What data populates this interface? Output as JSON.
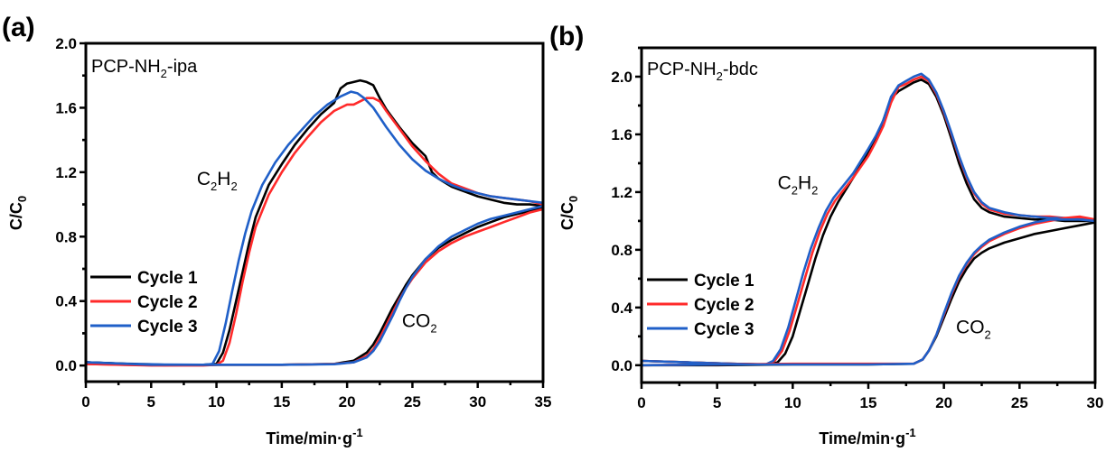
{
  "figure": {
    "colors": {
      "cycle1": "#000000",
      "cycle2": "#ff2a2a",
      "cycle3": "#1f5fc8",
      "axis": "#000000"
    }
  },
  "chart_data": [
    {
      "type": "line",
      "panel_label": "(a)",
      "sample": {
        "prefix": "PCP-NH",
        "sub": "2",
        "suffix": "-ipa"
      },
      "xlabel": {
        "main": "Time/min·g",
        "sup": "-1"
      },
      "ylabel": {
        "main": "C/C",
        "sub": "0"
      },
      "xlim": [
        0,
        35
      ],
      "ylim": [
        -0.1,
        2.0
      ],
      "xticks": [
        0,
        5,
        10,
        15,
        20,
        25,
        30,
        35
      ],
      "xtick_labels": [
        "0",
        "5",
        "10",
        "15",
        "20",
        "25",
        "30",
        "35"
      ],
      "yticks": [
        0.0,
        0.4,
        0.8,
        1.2,
        1.6,
        2.0
      ],
      "ytick_labels": [
        "0.0",
        "0.4",
        "0.8",
        "1.2",
        "1.6",
        "2.0"
      ],
      "grid": false,
      "legend": {
        "position": "lower-left",
        "entries": [
          "Cycle 1",
          "Cycle 2",
          "Cycle 3"
        ]
      },
      "annotations": [
        {
          "main": "C",
          "sub1": "2",
          "mid": "H",
          "sub2": "2",
          "x": 8.5,
          "y": 1.12
        },
        {
          "main": "CO",
          "sub1": "2",
          "x": 24.2,
          "y": 0.24
        }
      ],
      "series": [
        {
          "name": "Cycle 1",
          "gas": "C2H2",
          "color": "#000000",
          "x": [
            0,
            3,
            6,
            9,
            10,
            10.5,
            11,
            11.5,
            12,
            12.5,
            13,
            14,
            15,
            16,
            17,
            18,
            19,
            19.5,
            20,
            20.5,
            21,
            21.5,
            22,
            22.5,
            23,
            24,
            25,
            26,
            26.5,
            27,
            28,
            29,
            30,
            31,
            32,
            33,
            34,
            35
          ],
          "y": [
            0.02,
            0.01,
            0.005,
            0.005,
            0.01,
            0.08,
            0.22,
            0.4,
            0.58,
            0.76,
            0.92,
            1.12,
            1.25,
            1.37,
            1.47,
            1.56,
            1.63,
            1.72,
            1.75,
            1.76,
            1.77,
            1.76,
            1.74,
            1.66,
            1.59,
            1.48,
            1.38,
            1.3,
            1.2,
            1.16,
            1.11,
            1.08,
            1.05,
            1.03,
            1.01,
            1.0,
            1.0,
            0.99
          ]
        },
        {
          "name": "Cycle 2",
          "gas": "C2H2",
          "color": "#ff2a2a",
          "x": [
            0,
            3,
            6,
            9,
            10,
            10.5,
            11,
            11.5,
            12,
            12.5,
            13,
            14,
            15,
            16,
            17,
            18,
            19,
            20,
            20.5,
            21,
            21.5,
            22,
            22.5,
            23,
            24,
            25,
            26,
            27,
            28,
            29,
            30,
            31,
            32,
            33,
            34,
            35
          ],
          "y": [
            0.01,
            0.005,
            0.0,
            0.0,
            0.005,
            0.03,
            0.14,
            0.32,
            0.52,
            0.7,
            0.86,
            1.06,
            1.2,
            1.32,
            1.42,
            1.51,
            1.58,
            1.62,
            1.62,
            1.64,
            1.66,
            1.66,
            1.64,
            1.58,
            1.47,
            1.36,
            1.27,
            1.19,
            1.13,
            1.1,
            1.07,
            1.05,
            1.04,
            1.03,
            1.02,
            1.0
          ]
        },
        {
          "name": "Cycle 3",
          "gas": "C2H2",
          "color": "#1f5fc8",
          "x": [
            0,
            3,
            6,
            9,
            9.7,
            10.2,
            10.7,
            11.2,
            11.7,
            12.2,
            12.7,
            13.5,
            14.5,
            15.5,
            16.5,
            17.5,
            18.5,
            19.5,
            20.3,
            20.8,
            21.3,
            22,
            23,
            24,
            25,
            26,
            27,
            28,
            29,
            30,
            31,
            32,
            33,
            34,
            35
          ],
          "y": [
            0.02,
            0.012,
            0.006,
            0.005,
            0.01,
            0.09,
            0.26,
            0.46,
            0.65,
            0.82,
            0.96,
            1.12,
            1.26,
            1.37,
            1.46,
            1.55,
            1.62,
            1.67,
            1.7,
            1.69,
            1.66,
            1.6,
            1.48,
            1.37,
            1.28,
            1.21,
            1.16,
            1.12,
            1.09,
            1.07,
            1.05,
            1.04,
            1.03,
            1.02,
            1.01
          ]
        },
        {
          "name": "Cycle 1",
          "gas": "CO2",
          "color": "#000000",
          "x": [
            0,
            5,
            10,
            15,
            19,
            20.5,
            21.5,
            22,
            22.5,
            23,
            23.5,
            24,
            24.5,
            25,
            26,
            27,
            28,
            29,
            30,
            31,
            32,
            33,
            34,
            35
          ],
          "y": [
            0.02,
            0.005,
            0.005,
            0.005,
            0.01,
            0.03,
            0.08,
            0.13,
            0.2,
            0.28,
            0.36,
            0.43,
            0.5,
            0.56,
            0.66,
            0.73,
            0.78,
            0.82,
            0.86,
            0.89,
            0.92,
            0.94,
            0.96,
            0.98
          ]
        },
        {
          "name": "Cycle 2",
          "gas": "CO2",
          "color": "#ff2a2a",
          "x": [
            0,
            5,
            10,
            15,
            19,
            20.5,
            21.5,
            22,
            22.5,
            23,
            23.5,
            24,
            24.5,
            25,
            26,
            27,
            28,
            29,
            30,
            31,
            32,
            33,
            34,
            35
          ],
          "y": [
            0.01,
            0.0,
            0.005,
            0.005,
            0.01,
            0.02,
            0.06,
            0.1,
            0.17,
            0.25,
            0.33,
            0.41,
            0.48,
            0.54,
            0.64,
            0.71,
            0.76,
            0.8,
            0.83,
            0.86,
            0.89,
            0.92,
            0.95,
            0.97
          ]
        },
        {
          "name": "Cycle 3",
          "gas": "CO2",
          "color": "#1f5fc8",
          "x": [
            0,
            5,
            10,
            15,
            19,
            20.5,
            21.5,
            22,
            22.5,
            23,
            23.5,
            24,
            24.5,
            25,
            26,
            27,
            28,
            29,
            30,
            31,
            32,
            33,
            34,
            35
          ],
          "y": [
            0.02,
            0.005,
            0.005,
            0.005,
            0.008,
            0.02,
            0.05,
            0.09,
            0.15,
            0.23,
            0.31,
            0.4,
            0.48,
            0.55,
            0.66,
            0.74,
            0.8,
            0.84,
            0.88,
            0.91,
            0.93,
            0.95,
            0.97,
            0.99
          ]
        }
      ]
    },
    {
      "type": "line",
      "panel_label": "(b)",
      "sample": {
        "prefix": "PCP-NH",
        "sub": "2",
        "suffix": "-bdc"
      },
      "xlabel": {
        "main": "Time/min·g",
        "sup": "-1"
      },
      "ylabel": {
        "main": "C/C",
        "sub": "0"
      },
      "xlim": [
        0,
        30
      ],
      "ylim": [
        -0.12,
        2.2
      ],
      "xticks": [
        0,
        5,
        10,
        15,
        20,
        25,
        30
      ],
      "xtick_labels": [
        "0",
        "5",
        "10",
        "15",
        "20",
        "25",
        "30"
      ],
      "yticks": [
        0.0,
        0.4,
        0.8,
        1.2,
        1.6,
        2.0
      ],
      "ytick_labels": [
        "0.0",
        "0.4",
        "0.8",
        "1.2",
        "1.6",
        "2.0"
      ],
      "grid": false,
      "legend": {
        "position": "lower-left",
        "entries": [
          "Cycle 1",
          "Cycle 2",
          "Cycle 3"
        ]
      },
      "annotations": [
        {
          "main": "C",
          "sub1": "2",
          "mid": "H",
          "sub2": "2",
          "x": 9.0,
          "y": 1.22
        },
        {
          "main": "CO",
          "sub1": "2",
          "x": 20.8,
          "y": 0.22
        }
      ],
      "series": [
        {
          "name": "Cycle 1",
          "gas": "C2H2",
          "color": "#000000",
          "x": [
            0,
            3,
            6,
            8.5,
            9,
            9.5,
            10,
            10.5,
            11,
            11.5,
            12,
            12.5,
            13,
            14,
            15,
            15.5,
            16,
            16.5,
            17,
            17.5,
            18,
            18.5,
            19,
            19.5,
            20,
            20.5,
            21,
            21.5,
            22,
            22.5,
            23,
            24,
            25,
            26,
            27,
            28,
            29,
            30
          ],
          "y": [
            0.03,
            0.02,
            0.01,
            0.005,
            0.02,
            0.08,
            0.2,
            0.38,
            0.56,
            0.74,
            0.9,
            1.03,
            1.13,
            1.3,
            1.47,
            1.56,
            1.7,
            1.85,
            1.9,
            1.93,
            1.96,
            1.98,
            1.95,
            1.86,
            1.73,
            1.57,
            1.4,
            1.26,
            1.15,
            1.09,
            1.06,
            1.03,
            1.02,
            1.01,
            1.01,
            1.0,
            1.0,
            1.0
          ]
        },
        {
          "name": "Cycle 2",
          "gas": "C2H2",
          "color": "#ff2a2a",
          "x": [
            0,
            3,
            6,
            8.3,
            8.8,
            9.3,
            9.8,
            10.3,
            10.8,
            11.3,
            11.8,
            12.3,
            12.8,
            14,
            15,
            15.5,
            16,
            16.5,
            17,
            17.5,
            18,
            18.5,
            19,
            19.5,
            20,
            20.5,
            21,
            21.5,
            22,
            22.5,
            23,
            24,
            25,
            26,
            27,
            28,
            29,
            30
          ],
          "y": [
            0.03,
            0.02,
            0.01,
            0.005,
            0.03,
            0.1,
            0.24,
            0.42,
            0.6,
            0.78,
            0.93,
            1.05,
            1.14,
            1.3,
            1.45,
            1.55,
            1.66,
            1.82,
            1.93,
            1.95,
            1.98,
            2.0,
            1.97,
            1.88,
            1.75,
            1.6,
            1.44,
            1.3,
            1.19,
            1.12,
            1.08,
            1.05,
            1.04,
            1.03,
            1.03,
            1.02,
            1.02,
            1.0
          ]
        },
        {
          "name": "Cycle 3",
          "gas": "C2H2",
          "color": "#1f5fc8",
          "x": [
            0,
            3,
            6,
            8.2,
            8.7,
            9.2,
            9.7,
            10.2,
            10.7,
            11.2,
            11.7,
            12.2,
            12.7,
            14,
            15,
            15.5,
            16,
            16.5,
            17,
            17.5,
            18,
            18.5,
            19,
            19.5,
            20,
            20.5,
            21,
            21.5,
            22,
            22.5,
            23,
            24,
            25,
            26,
            27,
            28,
            29,
            30
          ],
          "y": [
            0.03,
            0.02,
            0.01,
            0.005,
            0.03,
            0.11,
            0.26,
            0.45,
            0.64,
            0.81,
            0.95,
            1.07,
            1.16,
            1.33,
            1.5,
            1.59,
            1.7,
            1.86,
            1.94,
            1.97,
            2.0,
            2.02,
            1.98,
            1.89,
            1.76,
            1.61,
            1.45,
            1.31,
            1.2,
            1.13,
            1.09,
            1.06,
            1.04,
            1.03,
            1.02,
            1.02,
            1.01,
            1.01
          ]
        },
        {
          "name": "Cycle 1",
          "gas": "CO2",
          "color": "#000000",
          "x": [
            0,
            5,
            10,
            15,
            18,
            18.6,
            19,
            19.5,
            20,
            20.5,
            21,
            21.5,
            22,
            22.5,
            23,
            24,
            25,
            26,
            27,
            28,
            29,
            30
          ],
          "y": [
            0.0,
            0.0,
            0.005,
            0.005,
            0.01,
            0.04,
            0.1,
            0.2,
            0.33,
            0.46,
            0.58,
            0.67,
            0.74,
            0.78,
            0.81,
            0.85,
            0.88,
            0.91,
            0.93,
            0.95,
            0.97,
            0.99
          ]
        },
        {
          "name": "Cycle 2",
          "gas": "CO2",
          "color": "#ff2a2a",
          "x": [
            0,
            5,
            10,
            15,
            18,
            18.6,
            19,
            19.5,
            20,
            20.5,
            21,
            21.5,
            22,
            22.5,
            23,
            24,
            25,
            26,
            27,
            28,
            29,
            30
          ],
          "y": [
            0.0,
            0.005,
            0.01,
            0.01,
            0.01,
            0.04,
            0.1,
            0.21,
            0.35,
            0.49,
            0.61,
            0.7,
            0.77,
            0.82,
            0.86,
            0.91,
            0.95,
            0.98,
            1.0,
            1.02,
            1.03,
            1.01
          ]
        },
        {
          "name": "Cycle 3",
          "gas": "CO2",
          "color": "#1f5fc8",
          "x": [
            0,
            5,
            10,
            15,
            18,
            18.6,
            19,
            19.5,
            20,
            20.5,
            21,
            21.5,
            22,
            22.5,
            23,
            24,
            25,
            26,
            27,
            28,
            29,
            30
          ],
          "y": [
            0.0,
            0.005,
            0.005,
            0.005,
            0.01,
            0.04,
            0.1,
            0.21,
            0.36,
            0.5,
            0.62,
            0.71,
            0.78,
            0.83,
            0.87,
            0.92,
            0.96,
            0.99,
            1.01,
            1.01,
            1.01,
            1.0
          ]
        }
      ]
    }
  ]
}
